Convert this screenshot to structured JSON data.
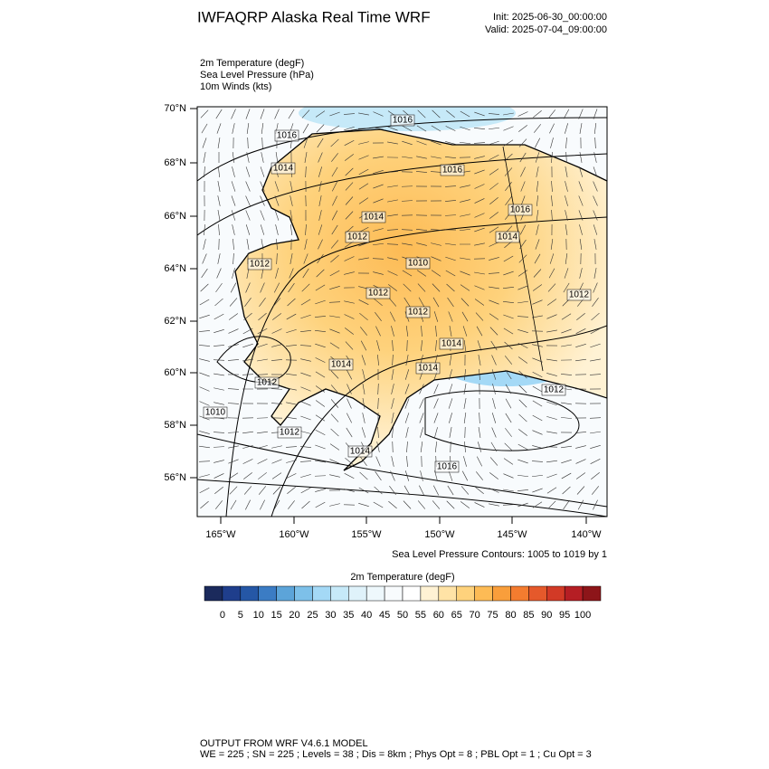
{
  "header": {
    "title": "IWFAQRP Alaska Real Time WRF",
    "init": "Init: 2025-06-30_00:00:00",
    "valid": "Valid: 2025-07-04_09:00:00"
  },
  "fields": [
    "2m Temperature   (degF)",
    "Sea Level Pressure   (hPa)",
    "10m Winds   (kts)"
  ],
  "lat_labels": [
    "70°N",
    "68°N",
    "66°N",
    "64°N",
    "62°N",
    "60°N",
    "58°N",
    "56°N"
  ],
  "lon_labels": [
    "165°W",
    "160°W",
    "155°W",
    "150°W",
    "145°W",
    "140°W"
  ],
  "contour_labels": [
    "1016",
    "1016",
    "1014",
    "1016",
    "1016",
    "1014",
    "1012",
    "1014",
    "1012",
    "1010",
    "1012",
    "1012",
    "1014",
    "1014",
    "1012",
    "1014",
    "1010",
    "1012",
    "1012",
    "1014",
    "1016",
    "1012"
  ],
  "contour_note": "Sea Level Pressure Contours: 1005 to 1019 by 1",
  "colorbar": {
    "title": "2m Temperature  (degF)",
    "labels": [
      0,
      5,
      10,
      15,
      20,
      25,
      30,
      35,
      40,
      45,
      50,
      55,
      60,
      65,
      70,
      75,
      80,
      85,
      90,
      95,
      100
    ],
    "colors": [
      "#1b2a5c",
      "#1f3e8c",
      "#2557a6",
      "#3b7cc4",
      "#5ca4d9",
      "#7dc0e9",
      "#a4d9f6",
      "#c6e9f8",
      "#dff2fa",
      "#eef8fc",
      "#f8fbfd",
      "#ffffff",
      "#fff2d4",
      "#ffe3a6",
      "#fed27c",
      "#fdbb55",
      "#f99e3b",
      "#f47c2f",
      "#e5592b",
      "#d23a26",
      "#b51e24",
      "#8d1519"
    ]
  },
  "footer": [
    "OUTPUT FROM WRF V4.6.1 MODEL",
    "WE = 225 ; SN = 225 ; Levels = 38 ; Dis = 8km ; Phys Opt = 8 ; PBL Opt = 1 ; Cu Opt = 3"
  ]
}
